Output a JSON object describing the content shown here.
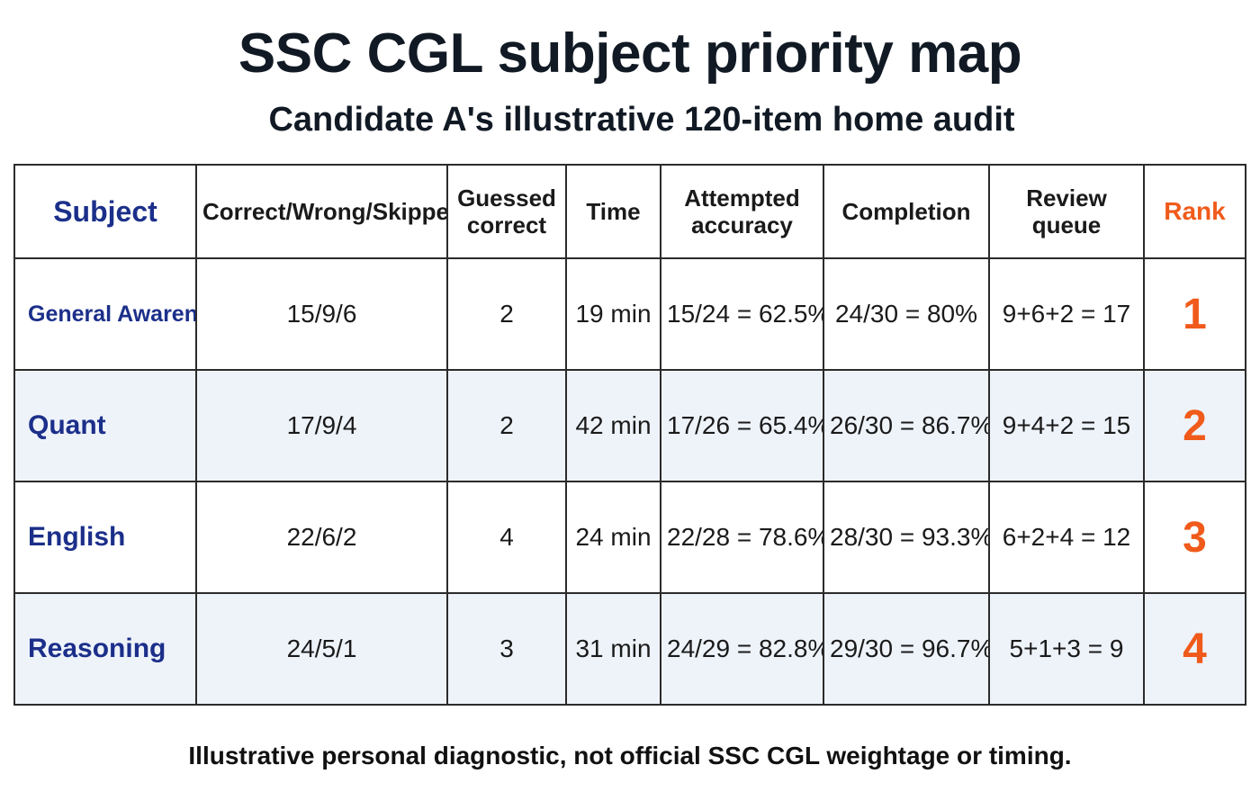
{
  "title": "SSC CGL subject priority map",
  "subtitle": "Candidate A's illustrative 120-item home audit",
  "headers": {
    "subject": "Subject",
    "cws": "Correct/Wrong/Skipped",
    "guessed_line1": "Guessed",
    "guessed_line2": "correct",
    "time": "Time",
    "accuracy_line1": "Attempted",
    "accuracy_line2": "accuracy",
    "completion": "Completion",
    "review_line1": "Review",
    "review_line2": "queue",
    "rank": "Rank"
  },
  "rows": [
    {
      "subject": "General Awareness",
      "cws": "15/9/6",
      "guessed": "2",
      "time": "19 min",
      "accuracy": "15/24 = 62.5%",
      "completion": "24/30 = 80%",
      "review": "9+6+2 = 17",
      "rank": "1"
    },
    {
      "subject": "Quant",
      "cws": "17/9/4",
      "guessed": "2",
      "time": "42 min",
      "accuracy": "17/26 = 65.4%",
      "completion": "26/30 = 86.7%",
      "review": "9+4+2 = 15",
      "rank": "2"
    },
    {
      "subject": "English",
      "cws": "22/6/2",
      "guessed": "4",
      "time": "24 min",
      "accuracy": "22/28 = 78.6%",
      "completion": "28/30 = 93.3%",
      "review": "6+2+4 = 12",
      "rank": "3"
    },
    {
      "subject": "Reasoning",
      "cws": "24/5/1",
      "guessed": "3",
      "time": "31 min",
      "accuracy": "24/29 = 82.8%",
      "completion": "29/30 = 96.7%",
      "review": "5+1+3 = 9",
      "rank": "4"
    }
  ],
  "footnote": "Illustrative personal diagnostic, not official SSC CGL weightage or timing.",
  "colors": {
    "subject_text": "#1b2f8a",
    "rank_text": "#f05a1a",
    "alt_row_background": "#eef3fa",
    "border": "#2b2b2b"
  }
}
